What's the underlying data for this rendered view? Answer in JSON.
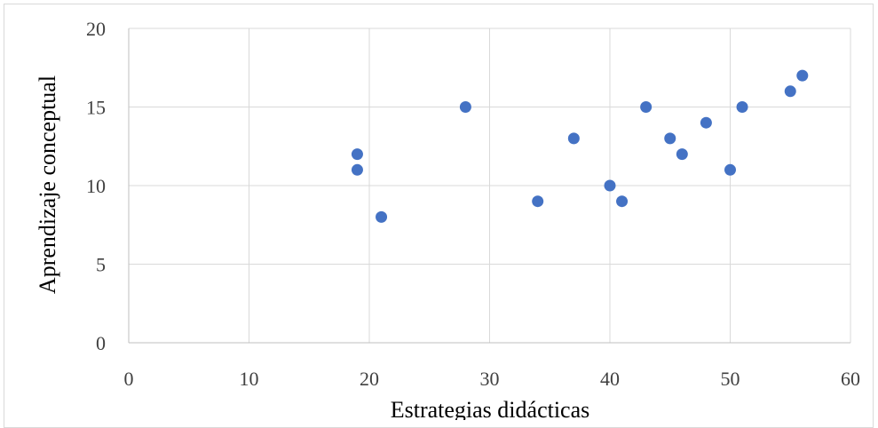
{
  "chart_data": {
    "type": "scatter",
    "title": "",
    "xlabel": "Estrategias didácticas",
    "ylabel": "Aprendizaje conceptual",
    "xlim": [
      0,
      60
    ],
    "ylim": [
      0,
      20
    ],
    "xticks": [
      "0",
      "10",
      "20",
      "30",
      "40",
      "50",
      "60"
    ],
    "yticks": [
      "0",
      "5",
      "10",
      "15",
      "20"
    ],
    "grid": true,
    "legend": "none",
    "marker_color": "#4472c4",
    "grid_color": "#d9d9d9",
    "axis_color": "#bfbfbf",
    "series": [
      {
        "points": [
          {
            "x": 19,
            "y": 12
          },
          {
            "x": 19,
            "y": 11
          },
          {
            "x": 21,
            "y": 8
          },
          {
            "x": 28,
            "y": 15
          },
          {
            "x": 34,
            "y": 9
          },
          {
            "x": 37,
            "y": 13
          },
          {
            "x": 40,
            "y": 10
          },
          {
            "x": 41,
            "y": 9
          },
          {
            "x": 43,
            "y": 15
          },
          {
            "x": 45,
            "y": 13
          },
          {
            "x": 46,
            "y": 12
          },
          {
            "x": 48,
            "y": 14
          },
          {
            "x": 50,
            "y": 11
          },
          {
            "x": 51,
            "y": 15
          },
          {
            "x": 55,
            "y": 16
          },
          {
            "x": 56,
            "y": 17
          }
        ]
      }
    ]
  }
}
